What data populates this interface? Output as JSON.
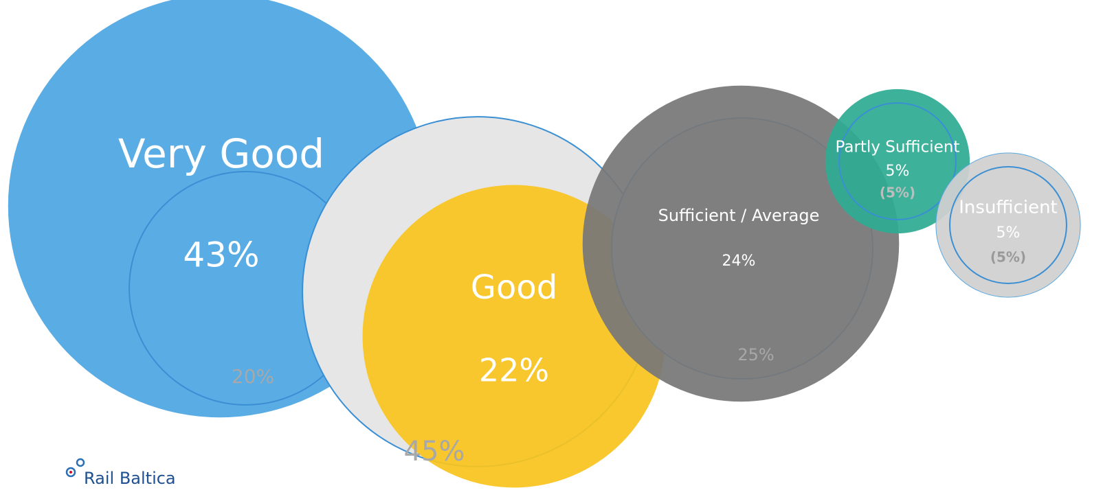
{
  "chart_data": {
    "type": "bubble",
    "categories": [
      "Very Good",
      "Good",
      "Sufficient / Average",
      "Partly Sufficient",
      "Insufficient"
    ],
    "values": [
      43,
      22,
      24,
      5,
      5
    ],
    "value_labels": [
      "43%",
      "22%",
      "24%",
      "5%",
      "5%"
    ],
    "previous": [
      20,
      45,
      25,
      5,
      5
    ],
    "previous_labels": [
      "20%",
      "45%",
      "25%",
      "(5%)",
      "(5%)"
    ],
    "colors": [
      "#4ea6e2",
      "#f8c41e",
      "#777777",
      "#2eab92",
      "#d0d0d0"
    ]
  },
  "logo": "Rail Baltica"
}
